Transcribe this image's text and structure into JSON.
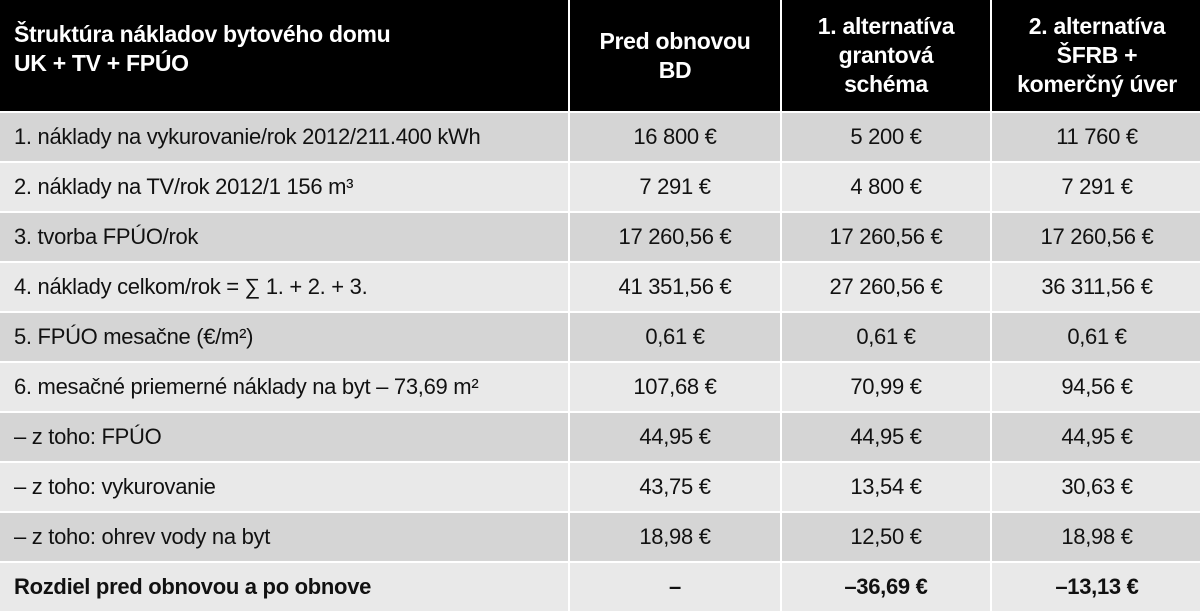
{
  "table": {
    "header": [
      [
        "Štruktúra nákladov bytového domu",
        "UK + TV + FPÚO"
      ],
      [
        "Pred obnovou",
        "BD"
      ],
      [
        "1. alternatíva",
        "grantová",
        "schéma"
      ],
      [
        "2. alternatíva",
        "ŠFRB +",
        "komerčný úver"
      ]
    ],
    "rows": [
      [
        "1. náklady na vykurovanie/rok 2012/211.400 kWh",
        "16 800 €",
        "5 200 €",
        "11 760 €"
      ],
      [
        "2. náklady na TV/rok 2012/1 156 m³",
        "7 291 €",
        "4 800 €",
        "7 291 €"
      ],
      [
        "3. tvorba FPÚO/rok",
        "17 260,56 €",
        "17 260,56 €",
        "17 260,56 €"
      ],
      [
        "4. náklady celkom/rok = ∑ 1. + 2. + 3.",
        "41 351,56 €",
        "27 260,56 €",
        "36 311,56 €"
      ],
      [
        "5. FPÚO mesačne (€/m²)",
        "0,61 €",
        "0,61 €",
        "0,61 €"
      ],
      [
        "6. mesačné priemerné náklady na byt – 73,69 m²",
        "107,68 €",
        "70,99 €",
        "94,56 €"
      ],
      [
        "– z toho: FPÚO",
        "44,95 €",
        "44,95 €",
        "44,95 €"
      ],
      [
        "– z toho: vykurovanie",
        "43,75 €",
        "13,54 €",
        "30,63 €"
      ],
      [
        "– z toho: ohrev vody na byt",
        "18,98 €",
        "12,50 €",
        "18,98 €"
      ],
      [
        "Rozdiel pred obnovou a po obnove",
        "–",
        "–36,69 €",
        "–13,13 €"
      ]
    ]
  }
}
